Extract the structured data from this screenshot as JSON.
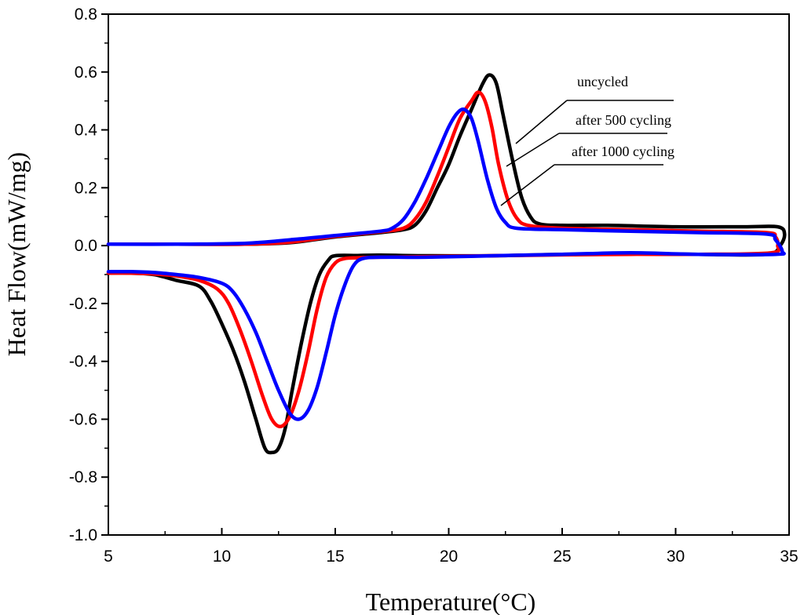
{
  "chart_data": {
    "type": "line",
    "title": "",
    "xlabel": "Temperature(°C)",
    "ylabel": "Heat Flow(mW/mg)",
    "xlim": [
      5,
      35
    ],
    "ylim": [
      -1.0,
      0.8
    ],
    "x_ticks": [
      5,
      10,
      15,
      20,
      25,
      30,
      35
    ],
    "x_tick_labels": [
      "5",
      "10",
      "15",
      "20",
      "25",
      "30",
      "35"
    ],
    "y_ticks": [
      -1.0,
      -0.8,
      -0.6,
      -0.4,
      -0.2,
      0.0,
      0.2,
      0.4,
      0.6,
      0.8
    ],
    "y_tick_labels": [
      "-1.0",
      "-0.8",
      "-0.6",
      "-0.4",
      "-0.2",
      "0.0",
      "0.2",
      "0.4",
      "0.6",
      "0.8"
    ],
    "grid": false,
    "legend_position": "top-right",
    "series": [
      {
        "name": "uncycled",
        "color": "#000000",
        "heating": [
          [
            5,
            0.005
          ],
          [
            8,
            0.005
          ],
          [
            11,
            0.005
          ],
          [
            13,
            0.01
          ],
          [
            15,
            0.03
          ],
          [
            17,
            0.045
          ],
          [
            18,
            0.055
          ],
          [
            18.5,
            0.07
          ],
          [
            19,
            0.12
          ],
          [
            19.5,
            0.2
          ],
          [
            20,
            0.28
          ],
          [
            20.5,
            0.38
          ],
          [
            21,
            0.47
          ],
          [
            21.5,
            0.56
          ],
          [
            21.8,
            0.59
          ],
          [
            22.1,
            0.56
          ],
          [
            22.4,
            0.45
          ],
          [
            22.8,
            0.3
          ],
          [
            23.2,
            0.17
          ],
          [
            23.6,
            0.1
          ],
          [
            24,
            0.075
          ],
          [
            25,
            0.07
          ],
          [
            27,
            0.07
          ],
          [
            30,
            0.065
          ],
          [
            33,
            0.065
          ],
          [
            34.5,
            0.065
          ],
          [
            34.8,
            0.04
          ],
          [
            34.6,
            0.0
          ],
          [
            34,
            -0.03
          ]
        ],
        "cooling": [
          [
            34,
            -0.03
          ],
          [
            31,
            -0.03
          ],
          [
            28,
            -0.028
          ],
          [
            25,
            -0.03
          ],
          [
            22,
            -0.035
          ],
          [
            19,
            -0.035
          ],
          [
            17,
            -0.033
          ],
          [
            16,
            -0.034
          ],
          [
            15,
            -0.035
          ],
          [
            14.7,
            -0.05
          ],
          [
            14.3,
            -0.1
          ],
          [
            13.9,
            -0.2
          ],
          [
            13.5,
            -0.34
          ],
          [
            13.1,
            -0.5
          ],
          [
            12.8,
            -0.63
          ],
          [
            12.5,
            -0.7
          ],
          [
            12.2,
            -0.715
          ],
          [
            11.9,
            -0.7
          ],
          [
            11.5,
            -0.6
          ],
          [
            11,
            -0.47
          ],
          [
            10.5,
            -0.36
          ],
          [
            10,
            -0.27
          ],
          [
            9.5,
            -0.19
          ],
          [
            9,
            -0.14
          ],
          [
            8,
            -0.12
          ],
          [
            7,
            -0.1
          ],
          [
            6,
            -0.095
          ],
          [
            5,
            -0.095
          ]
        ]
      },
      {
        "name": "after 500 cycling",
        "color": "#ff0000",
        "heating": [
          [
            5,
            0.005
          ],
          [
            8,
            0.005
          ],
          [
            11,
            0.005
          ],
          [
            13,
            0.012
          ],
          [
            15,
            0.032
          ],
          [
            17,
            0.048
          ],
          [
            18,
            0.06
          ],
          [
            18.5,
            0.09
          ],
          [
            19,
            0.15
          ],
          [
            19.5,
            0.24
          ],
          [
            20,
            0.34
          ],
          [
            20.5,
            0.44
          ],
          [
            21,
            0.5
          ],
          [
            21.3,
            0.53
          ],
          [
            21.6,
            0.5
          ],
          [
            21.9,
            0.41
          ],
          [
            22.2,
            0.28
          ],
          [
            22.6,
            0.16
          ],
          [
            23,
            0.095
          ],
          [
            23.5,
            0.07
          ],
          [
            25,
            0.06
          ],
          [
            28,
            0.055
          ],
          [
            31,
            0.05
          ],
          [
            34,
            0.045
          ],
          [
            34.4,
            0.03
          ],
          [
            34.5,
            0.0
          ],
          [
            34.2,
            -0.025
          ]
        ],
        "cooling": [
          [
            34.2,
            -0.025
          ],
          [
            31,
            -0.03
          ],
          [
            28,
            -0.03
          ],
          [
            25,
            -0.032
          ],
          [
            22,
            -0.035
          ],
          [
            19,
            -0.038
          ],
          [
            17,
            -0.04
          ],
          [
            16,
            -0.042
          ],
          [
            15.4,
            -0.045
          ],
          [
            15,
            -0.06
          ],
          [
            14.6,
            -0.11
          ],
          [
            14.2,
            -0.22
          ],
          [
            13.8,
            -0.37
          ],
          [
            13.4,
            -0.5
          ],
          [
            13,
            -0.59
          ],
          [
            12.6,
            -0.625
          ],
          [
            12.2,
            -0.6
          ],
          [
            11.8,
            -0.52
          ],
          [
            11.3,
            -0.4
          ],
          [
            10.8,
            -0.29
          ],
          [
            10.3,
            -0.2
          ],
          [
            9.8,
            -0.15
          ],
          [
            9,
            -0.12
          ],
          [
            8,
            -0.105
          ],
          [
            7,
            -0.098
          ],
          [
            6,
            -0.095
          ],
          [
            5,
            -0.095
          ]
        ]
      },
      {
        "name": "after 1000 cycling",
        "color": "#0000ff",
        "heating": [
          [
            5,
            0.005
          ],
          [
            8,
            0.005
          ],
          [
            11,
            0.008
          ],
          [
            13,
            0.02
          ],
          [
            15,
            0.035
          ],
          [
            17,
            0.05
          ],
          [
            17.5,
            0.06
          ],
          [
            18,
            0.09
          ],
          [
            18.5,
            0.15
          ],
          [
            19,
            0.23
          ],
          [
            19.5,
            0.32
          ],
          [
            20,
            0.41
          ],
          [
            20.4,
            0.46
          ],
          [
            20.7,
            0.47
          ],
          [
            21,
            0.44
          ],
          [
            21.3,
            0.36
          ],
          [
            21.7,
            0.23
          ],
          [
            22.1,
            0.13
          ],
          [
            22.5,
            0.08
          ],
          [
            23,
            0.06
          ],
          [
            25,
            0.055
          ],
          [
            28,
            0.05
          ],
          [
            31,
            0.045
          ],
          [
            34,
            0.04
          ],
          [
            34.4,
            0.02
          ],
          [
            34.7,
            -0.02
          ],
          [
            34.4,
            -0.03
          ]
        ],
        "cooling": [
          [
            34.4,
            -0.03
          ],
          [
            31,
            -0.03
          ],
          [
            28,
            -0.025
          ],
          [
            25,
            -0.03
          ],
          [
            22,
            -0.035
          ],
          [
            19,
            -0.04
          ],
          [
            17,
            -0.04
          ],
          [
            16.2,
            -0.045
          ],
          [
            15.8,
            -0.07
          ],
          [
            15.4,
            -0.14
          ],
          [
            15,
            -0.24
          ],
          [
            14.6,
            -0.37
          ],
          [
            14.2,
            -0.49
          ],
          [
            13.8,
            -0.57
          ],
          [
            13.4,
            -0.6
          ],
          [
            13,
            -0.58
          ],
          [
            12.5,
            -0.5
          ],
          [
            12,
            -0.4
          ],
          [
            11.5,
            -0.3
          ],
          [
            11,
            -0.22
          ],
          [
            10.5,
            -0.16
          ],
          [
            10,
            -0.13
          ],
          [
            9,
            -0.11
          ],
          [
            8,
            -0.1
          ],
          [
            7,
            -0.093
          ],
          [
            6,
            -0.09
          ],
          [
            5,
            -0.09
          ]
        ]
      }
    ]
  }
}
